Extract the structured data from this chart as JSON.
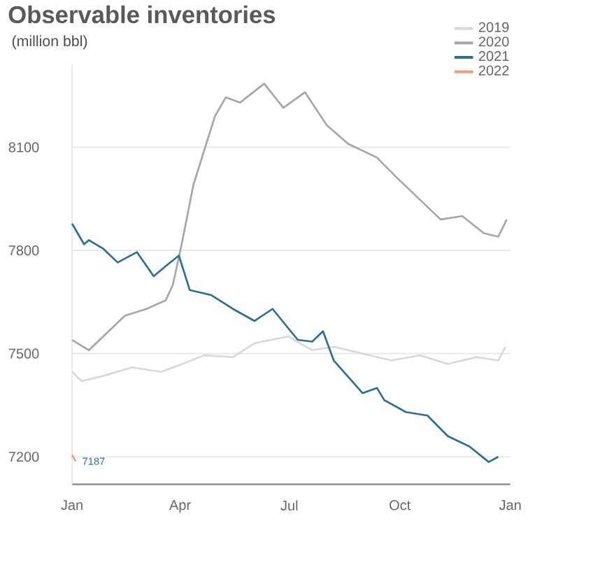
{
  "chart_data": {
    "type": "line",
    "title": "Observable inventories",
    "subtitle": "(million bbl)",
    "xlim": [
      "2021-01-01",
      "2022-01-01"
    ],
    "ylim": [
      7120,
      8340
    ],
    "xticks": [
      {
        "value": "2021-01-01",
        "label": "Jan"
      },
      {
        "value": "2021-04-01",
        "label": "Apr"
      },
      {
        "value": "2021-07-01",
        "label": "Jul"
      },
      {
        "value": "2021-10-01",
        "label": "Oct"
      },
      {
        "value": "2022-01-01",
        "label": "Jan"
      }
    ],
    "yticks": [
      7200,
      7500,
      7800,
      8100
    ],
    "grid": "y",
    "legend": "top right",
    "marker": "none",
    "line_style": "solid",
    "series": [
      {
        "name": "2019",
        "color": "#d9d9d9",
        "x": [
          "2021-01-01",
          "2021-01-09",
          "2021-01-27",
          "2021-02-20",
          "2021-03-16",
          "2021-04-03",
          "2021-04-21",
          "2021-05-15",
          "2021-06-02",
          "2021-06-30",
          "2021-07-20",
          "2021-08-07",
          "2021-08-31",
          "2021-09-24",
          "2021-10-18",
          "2021-11-10",
          "2021-12-04",
          "2021-12-22",
          "2021-12-28"
        ],
        "values": [
          7447,
          7420,
          7435,
          7460,
          7447,
          7470,
          7495,
          7490,
          7530,
          7550,
          7510,
          7520,
          7500,
          7480,
          7495,
          7470,
          7490,
          7480,
          7520
        ]
      },
      {
        "name": "2020",
        "color": "#a6a6a6",
        "x": [
          "2021-01-01",
          "2021-01-15",
          "2021-02-02",
          "2021-02-14",
          "2021-03-04",
          "2021-03-20",
          "2021-03-26",
          "2021-04-03",
          "2021-04-12",
          "2021-04-21",
          "2021-04-30",
          "2021-05-09",
          "2021-05-21",
          "2021-06-10",
          "2021-06-26",
          "2021-07-14",
          "2021-08-01",
          "2021-08-19",
          "2021-09-12",
          "2021-09-29",
          "2021-10-17",
          "2021-11-04",
          "2021-11-22",
          "2021-12-10",
          "2021-12-22",
          "2021-12-29"
        ],
        "values": [
          7540,
          7510,
          7570,
          7610,
          7630,
          7655,
          7700,
          7830,
          7990,
          8090,
          8190,
          8245,
          8230,
          8285,
          8215,
          8260,
          8165,
          8110,
          8070,
          8010,
          7950,
          7890,
          7900,
          7850,
          7840,
          7890
        ]
      },
      {
        "name": "2021",
        "color": "#2e6e8e",
        "x": [
          "2021-01-01",
          "2021-01-11",
          "2021-01-15",
          "2021-01-27",
          "2021-02-08",
          "2021-02-24",
          "2021-03-10",
          "2021-03-22",
          "2021-03-31",
          "2021-04-09",
          "2021-04-27",
          "2021-05-15",
          "2021-06-02",
          "2021-06-17",
          "2021-07-08",
          "2021-07-20",
          "2021-07-29",
          "2021-08-07",
          "2021-08-31",
          "2021-09-12",
          "2021-09-18",
          "2021-10-06",
          "2021-10-24",
          "2021-11-10",
          "2021-11-28",
          "2021-12-14",
          "2021-12-22"
        ],
        "values": [
          7878,
          7818,
          7830,
          7805,
          7765,
          7795,
          7725,
          7760,
          7785,
          7685,
          7670,
          7630,
          7595,
          7630,
          7540,
          7535,
          7565,
          7480,
          7385,
          7400,
          7365,
          7330,
          7320,
          7260,
          7230,
          7185,
          7200
        ]
      },
      {
        "name": "2022",
        "color": "#e8a07a",
        "x": [
          "2021-01-01",
          "2021-01-04"
        ],
        "values": [
          7205,
          7187
        ]
      }
    ],
    "annotations": [
      {
        "text": "7187",
        "x": "2021-01-04",
        "y": 7187
      }
    ]
  }
}
